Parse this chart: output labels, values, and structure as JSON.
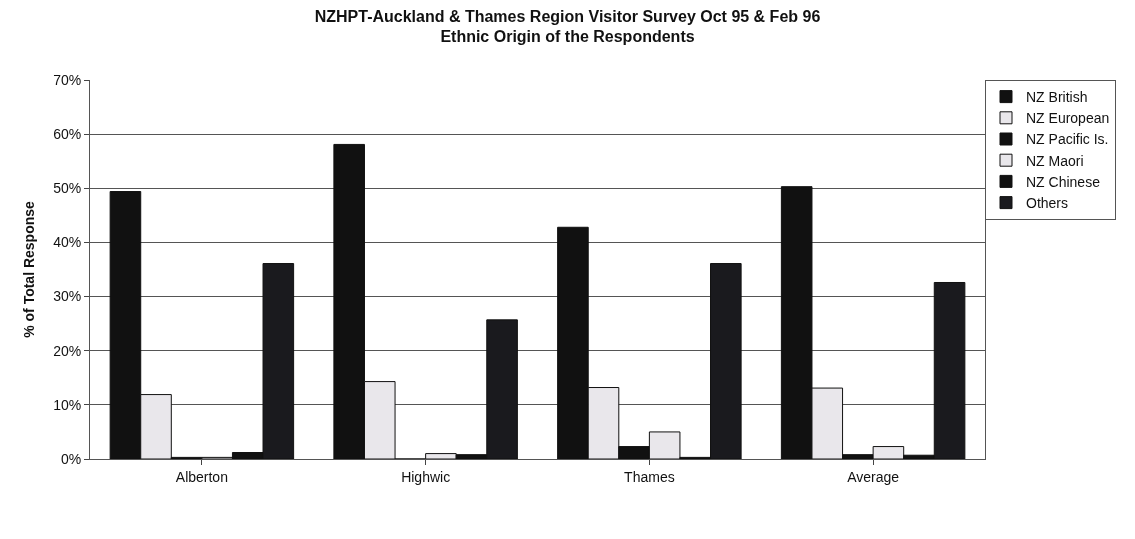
{
  "chart_data": {
    "type": "bar",
    "title": "NZHPT-Auckland & Thames Region Visitor Survey Oct 95 & Feb 96",
    "subtitle": "Ethnic Origin of the Respondents",
    "ylabel": "% of Total Response",
    "categories": [
      "Alberton",
      "Highwic",
      "Thames",
      "Average"
    ],
    "series": [
      {
        "name": "NZ British",
        "color": "#111111",
        "values": [
          49.4,
          58.1,
          42.8,
          50.3
        ]
      },
      {
        "name": "NZ European",
        "color": "#e9e7eb",
        "values": [
          11.9,
          14.3,
          13.2,
          13.1
        ]
      },
      {
        "name": "NZ Pacific Is.",
        "color": "#111111",
        "values": [
          0.3,
          0,
          2.3,
          0.8
        ]
      },
      {
        "name": "NZ Maori",
        "color": "#e9e7eb",
        "values": [
          0.3,
          1.0,
          5.0,
          2.3
        ]
      },
      {
        "name": "NZ Chinese",
        "color": "#111111",
        "values": [
          1.2,
          0.8,
          0.3,
          0.7
        ]
      },
      {
        "name": "Others",
        "color": "#1a1a1e",
        "values": [
          36.1,
          25.7,
          36.1,
          32.6
        ]
      }
    ],
    "ylim": [
      0,
      70
    ],
    "yticks": [
      {
        "value": 0,
        "label": "0%"
      },
      {
        "value": 10,
        "label": "10%"
      },
      {
        "value": 20,
        "label": "20%"
      },
      {
        "value": 30,
        "label": "30%"
      },
      {
        "value": 40,
        "label": "40%"
      },
      {
        "value": 50,
        "label": "50%"
      },
      {
        "value": 60,
        "label": "60%"
      },
      {
        "value": 70,
        "label": "70%"
      }
    ],
    "grid": "y",
    "legend": "top right"
  }
}
